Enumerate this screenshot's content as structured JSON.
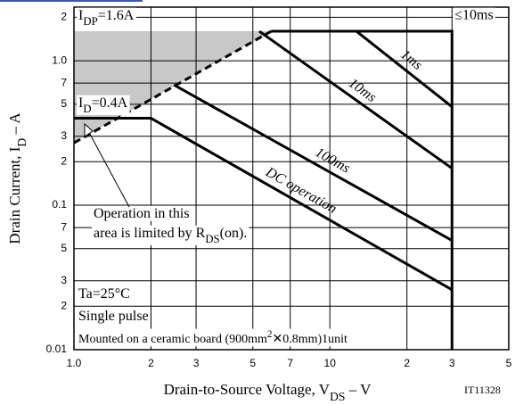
{
  "chart_data": {
    "type": "line",
    "x_label": [
      "Drain-to-Source Voltage, V",
      "DS",
      " – V"
    ],
    "y_label": [
      "Drain Current, I",
      "D",
      " – A"
    ],
    "log_x": true,
    "log_y": true,
    "grid": true,
    "xlim": [
      1,
      50
    ],
    "xticks": [
      {
        "value": 1,
        "label": "1.0"
      },
      2,
      3,
      5,
      7,
      10,
      {
        "value": 20,
        "label": "2"
      },
      {
        "value": 30,
        "label": "3"
      },
      {
        "value": 50,
        "label": "5"
      }
    ],
    "ylim": [
      0.01,
      2.35
    ],
    "yticks": [
      2,
      {
        "value": 1,
        "label": "1.0"
      },
      {
        "value": 0.7,
        "label": "7"
      },
      {
        "value": 0.5,
        "label": "5"
      },
      {
        "value": 0.3,
        "label": "3"
      },
      {
        "value": 0.2,
        "label": "2"
      },
      0.1,
      {
        "value": 0.07,
        "label": "7"
      },
      {
        "value": 0.05,
        "label": "5"
      },
      {
        "value": 0.03,
        "label": "3"
      },
      {
        "value": 0.02,
        "label": "2"
      },
      0.01
    ],
    "series": [
      {
        "name": "≤10ms",
        "color": "#000000",
        "x": [
          5.9,
          30,
          30
        ],
        "values": [
          1.6,
          1.6,
          0.01
        ]
      },
      {
        "name": "1ms",
        "color": "#000000",
        "x": [
          12.7,
          30
        ],
        "values": [
          1.6,
          0.48
        ]
      },
      {
        "name": "10ms",
        "color": "#000000",
        "x": [
          5.3,
          30
        ],
        "values": [
          1.6,
          0.18
        ]
      },
      {
        "name": "100ms",
        "color": "#000000",
        "x": [
          2.46,
          30
        ],
        "values": [
          0.68,
          0.057
        ]
      },
      {
        "name": "DC operation",
        "color": "#000000",
        "x": [
          1,
          2,
          30
        ],
        "values": [
          0.4,
          0.4,
          0.026
        ]
      },
      {
        "color": "#000000",
        "dashed": true,
        "x": [
          1,
          5.9
        ],
        "values": [
          0.27,
          1.6
        ]
      }
    ],
    "shade_color": "#c8c8c8",
    "annotations": [
      {
        "text": [
          "I",
          "DP",
          "=1.6A"
        ]
      },
      {
        "text": [
          "I",
          "D",
          "=0.4A"
        ]
      },
      {
        "text": [
          "Operation in this"
        ]
      },
      {
        "text": [
          "area is limited by R",
          "DS",
          "(on)."
        ]
      },
      {
        "text": [
          "Ta=25°C"
        ]
      },
      {
        "text": [
          "Single pulse"
        ]
      },
      {
        "text": [
          "Mounted on a ceramic board (900mm",
          "2",
          "✕0.8mm)1unit"
        ],
        "superscript": true
      },
      {
        "text": [
          "IT11328"
        ]
      }
    ]
  }
}
